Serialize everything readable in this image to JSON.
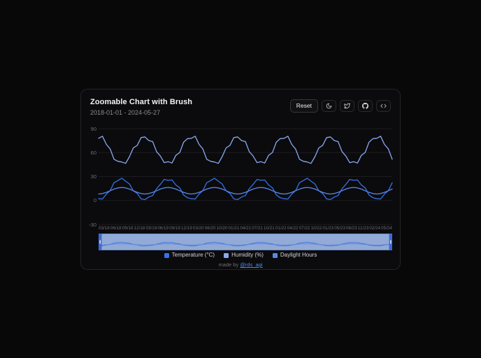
{
  "window": {
    "background": "#080808"
  },
  "card": {
    "title": "Zoomable Chart with Brush",
    "subtitle": "2018-01-01 - 2024-05-27",
    "toolbar": {
      "reset_label": "Reset",
      "icons": [
        "theme-toggle-moon-icon",
        "twitter-icon",
        "github-icon",
        "view-code-icon"
      ]
    },
    "footer": {
      "made_by_prefix": "made by ",
      "made_by_link": "@rds_agi"
    }
  },
  "chart_data": {
    "type": "line",
    "title": "Zoomable Chart with Brush",
    "date_range": "2018-01-01 - 2024-05-27",
    "ylim": [
      -30,
      90
    ],
    "yticks": [
      90,
      60,
      30,
      0,
      -30
    ],
    "grid": "horizontal",
    "grid_color": "#1d1d21",
    "legend_position": "bottom-center",
    "x_tick_labels": [
      "03/18",
      "06/18",
      "09/18",
      "12/18",
      "03/19",
      "06/19",
      "09/19",
      "12/19",
      "03/20",
      "06/20",
      "10/20",
      "01/21",
      "04/21",
      "07/21",
      "10/21",
      "01/22",
      "04/22",
      "07/22",
      "10/22",
      "01/23",
      "05/23",
      "08/23",
      "11/23",
      "02/24",
      "05/24"
    ],
    "x_unit": "monthly points, Jan 2018 - May 2024",
    "series": [
      {
        "name": "Temperature (°C)",
        "color": "#3572e8",
        "values": [
          2.2,
          1.9,
          8,
          12.5,
          22.3,
          25,
          27.9,
          24.2,
          20.7,
          12.1,
          8.9,
          2.1,
          1.1,
          4.3,
          6.2,
          14.7,
          20.3,
          26.4,
          25.3,
          25.7,
          19.5,
          15.9,
          7,
          3.5,
          2.2,
          1.9,
          8,
          12.5,
          22.3,
          25,
          27.9,
          24.2,
          20.7,
          12.1,
          8.9,
          2.1,
          1.1,
          4.3,
          6.2,
          14.7,
          20.3,
          26.4,
          25.3,
          25.7,
          19.5,
          15.9,
          7,
          3.5,
          2.2,
          1.9,
          8,
          12.5,
          22.3,
          25,
          27.9,
          24.2,
          20.7,
          12.1,
          8.9,
          2.1,
          1.1,
          4.3,
          6.2,
          14.7,
          20.3,
          26.4,
          25.3,
          25.7,
          19.5,
          15.9,
          7,
          3.5,
          2.2,
          1.9,
          8,
          12.5,
          22.3
        ]
      },
      {
        "name": "Humidity (%)",
        "color": "#8aa9f0",
        "values": [
          77.9,
          80.5,
          70.3,
          64.5,
          51.6,
          49.1,
          48.2,
          46.5,
          55,
          65.9,
          69.1,
          78.8,
          79.7,
          75.1,
          73.8,
          61.3,
          55.7,
          47.4,
          48.7,
          46.9,
          56.5,
          60.1,
          73,
          77.5,
          77.9,
          80.5,
          70.3,
          64.5,
          51.6,
          49.1,
          48.2,
          46.5,
          55,
          65.9,
          69.1,
          78.8,
          79.7,
          75.1,
          73.8,
          61.3,
          55.7,
          47.4,
          48.7,
          46.9,
          56.5,
          60.1,
          73,
          77.5,
          77.9,
          80.5,
          70.3,
          64.5,
          51.6,
          49.1,
          48.2,
          46.5,
          55,
          65.9,
          69.1,
          78.8,
          79.7,
          75.1,
          73.8,
          61.3,
          55.7,
          47.4,
          48.7,
          46.9,
          56.5,
          60.1,
          73,
          77.5,
          77.9,
          80.5,
          70.3,
          64.5,
          51.6
        ]
      },
      {
        "name": "Daylight Hours",
        "color": "#5b87e6",
        "values": [
          8.1,
          8.7,
          10.2,
          12.2,
          14.3,
          15.8,
          16.3,
          15.8,
          14.3,
          12.2,
          10.2,
          8.7,
          8.1,
          8.7,
          10.2,
          12.2,
          14.3,
          15.8,
          16.3,
          15.8,
          14.3,
          12.2,
          10.2,
          8.7,
          8.1,
          8.7,
          10.2,
          12.2,
          14.3,
          15.8,
          16.3,
          15.8,
          14.3,
          12.2,
          10.2,
          8.7,
          8.1,
          8.7,
          10.2,
          12.2,
          14.3,
          15.8,
          16.3,
          15.8,
          14.3,
          12.2,
          10.2,
          8.7,
          8.1,
          8.7,
          10.2,
          12.2,
          14.3,
          15.8,
          16.3,
          15.8,
          14.3,
          12.2,
          10.2,
          8.7,
          8.1,
          8.7,
          10.2,
          12.2,
          14.3,
          15.8,
          16.3,
          15.8,
          14.3,
          12.2,
          10.2,
          8.7,
          8.1,
          8.7,
          10.2,
          12.2,
          14.3
        ]
      }
    ],
    "brush": {
      "fill": "#a6c0f0",
      "handle_color": "#3e69d2",
      "selection": "full-range"
    }
  }
}
